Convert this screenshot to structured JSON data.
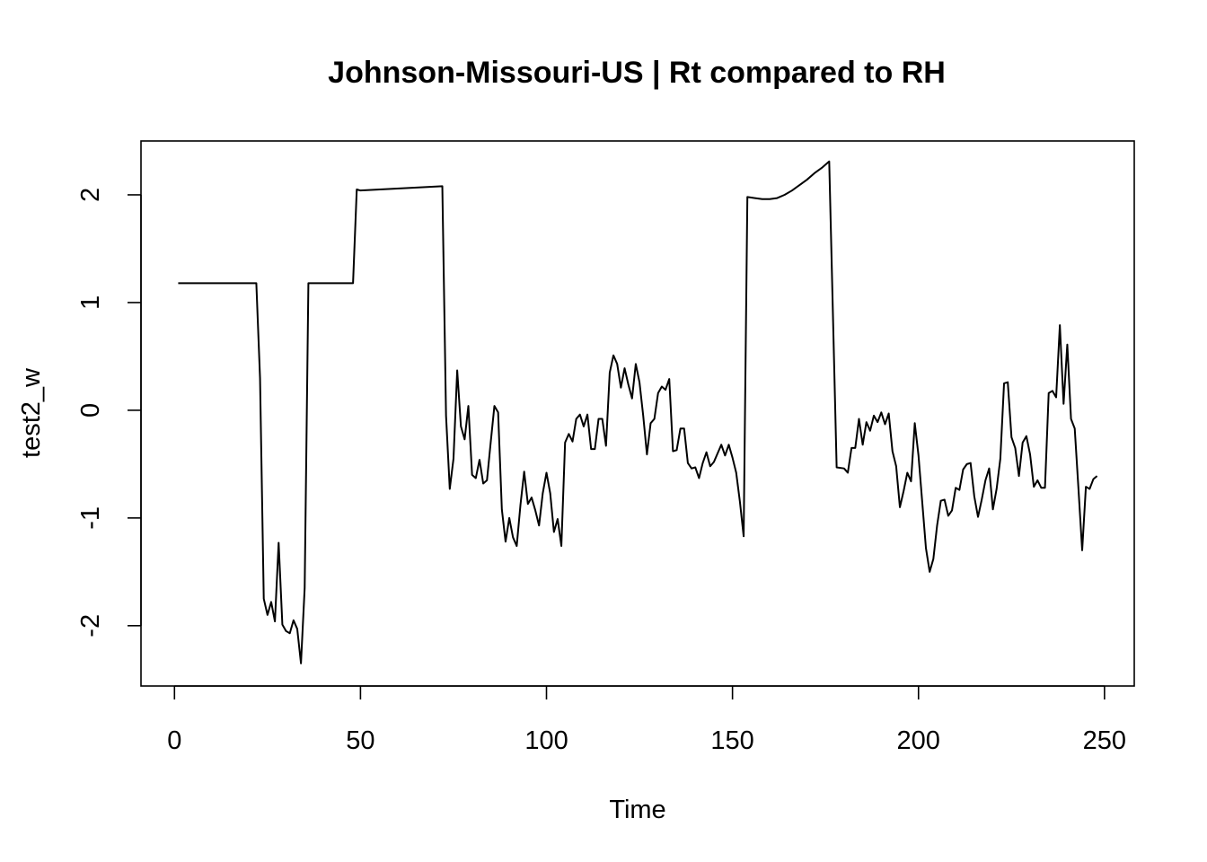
{
  "chart_data": {
    "type": "line",
    "title": "Johnson-Missouri-US | Rt compared to RH",
    "xlabel": "Time",
    "ylabel": "test2_w",
    "xlim": [
      -9,
      258
    ],
    "ylim": [
      -2.56,
      2.5
    ],
    "xticks": [
      0,
      50,
      100,
      150,
      200,
      250
    ],
    "xtick_labels": [
      "0",
      "50",
      "100",
      "150",
      "200",
      "250"
    ],
    "yticks": [
      -2,
      -1,
      0,
      1,
      2
    ],
    "ytick_labels": [
      "-2",
      "-1",
      "0",
      "1",
      "2"
    ],
    "grid": false,
    "legend": "none",
    "series": [
      {
        "color": "#000000",
        "x": [
          1,
          22,
          23,
          24,
          25,
          26,
          27,
          28,
          29,
          30,
          31,
          32,
          33,
          34,
          35,
          36,
          37,
          48,
          49,
          50,
          72,
          73,
          74,
          75,
          76,
          77,
          78,
          79,
          80,
          81,
          82,
          83,
          84,
          85,
          86,
          87,
          88,
          89,
          90,
          91,
          92,
          93,
          94,
          95,
          96,
          97,
          98,
          99,
          100,
          101,
          102,
          103,
          104,
          105,
          106,
          107,
          108,
          109,
          110,
          111,
          112,
          113,
          114,
          115,
          116,
          117,
          118,
          119,
          120,
          121,
          122,
          123,
          124,
          125,
          126,
          127,
          128,
          129,
          130,
          131,
          132,
          133,
          134,
          135,
          136,
          137,
          138,
          139,
          140,
          141,
          142,
          143,
          144,
          145,
          146,
          147,
          148,
          149,
          150,
          151,
          152,
          153,
          154,
          156,
          158,
          160,
          162,
          164,
          166,
          168,
          170,
          172,
          174,
          176,
          178,
          180,
          181,
          182,
          183,
          184,
          185,
          186,
          187,
          188,
          189,
          190,
          191,
          192,
          193,
          194,
          195,
          196,
          197,
          198,
          199,
          200,
          201,
          202,
          203,
          204,
          205,
          206,
          207,
          208,
          209,
          210,
          211,
          212,
          213,
          214,
          215,
          216,
          217,
          218,
          219,
          220,
          221,
          222,
          223,
          224,
          225,
          226,
          227,
          228,
          229,
          230,
          231,
          232,
          233,
          234,
          235,
          236,
          237,
          238,
          239,
          240,
          241,
          242,
          243,
          244,
          245,
          246,
          247,
          248
        ],
        "y": [
          1.18,
          1.18,
          0.3,
          -1.75,
          -1.9,
          -1.78,
          -1.96,
          -1.23,
          -1.99,
          -2.05,
          -2.07,
          -1.95,
          -2.03,
          -2.35,
          -1.65,
          1.18,
          1.18,
          1.18,
          2.05,
          2.04,
          2.08,
          -0.05,
          -0.73,
          -0.45,
          0.37,
          -0.15,
          -0.27,
          0.04,
          -0.6,
          -0.63,
          -0.46,
          -0.68,
          -0.65,
          -0.3,
          0.04,
          -0.02,
          -0.92,
          -1.22,
          -1.0,
          -1.18,
          -1.26,
          -0.88,
          -0.57,
          -0.87,
          -0.81,
          -0.93,
          -1.07,
          -0.77,
          -0.58,
          -0.77,
          -1.13,
          -1.01,
          -1.26,
          -0.3,
          -0.22,
          -0.29,
          -0.08,
          -0.04,
          -0.15,
          -0.04,
          -0.36,
          -0.36,
          -0.08,
          -0.08,
          -0.33,
          0.35,
          0.51,
          0.43,
          0.21,
          0.39,
          0.24,
          0.11,
          0.43,
          0.26,
          -0.05,
          -0.41,
          -0.12,
          -0.08,
          0.16,
          0.22,
          0.19,
          0.29,
          -0.38,
          -0.37,
          -0.17,
          -0.17,
          -0.49,
          -0.54,
          -0.53,
          -0.63,
          -0.49,
          -0.39,
          -0.52,
          -0.48,
          -0.4,
          -0.32,
          -0.42,
          -0.32,
          -0.44,
          -0.58,
          -0.85,
          -1.17,
          1.98,
          1.97,
          1.96,
          1.96,
          1.97,
          2.0,
          2.04,
          2.09,
          2.14,
          2.2,
          2.25,
          2.31,
          -0.53,
          -0.54,
          -0.58,
          -0.35,
          -0.35,
          -0.08,
          -0.32,
          -0.11,
          -0.19,
          -0.05,
          -0.11,
          -0.02,
          -0.13,
          -0.03,
          -0.38,
          -0.52,
          -0.9,
          -0.75,
          -0.58,
          -0.66,
          -0.12,
          -0.42,
          -0.85,
          -1.28,
          -1.5,
          -1.38,
          -1.07,
          -0.84,
          -0.83,
          -0.98,
          -0.93,
          -0.72,
          -0.74,
          -0.55,
          -0.5,
          -0.49,
          -0.8,
          -0.99,
          -0.83,
          -0.65,
          -0.54,
          -0.92,
          -0.73,
          -0.45,
          0.25,
          0.26,
          -0.25,
          -0.35,
          -0.61,
          -0.3,
          -0.24,
          -0.41,
          -0.71,
          -0.65,
          -0.72,
          -0.72,
          0.16,
          0.18,
          0.12,
          0.79,
          0.06,
          0.61,
          -0.08,
          -0.17,
          -0.73,
          -1.3,
          -0.71,
          -0.73,
          -0.64,
          -0.61
        ]
      }
    ]
  }
}
